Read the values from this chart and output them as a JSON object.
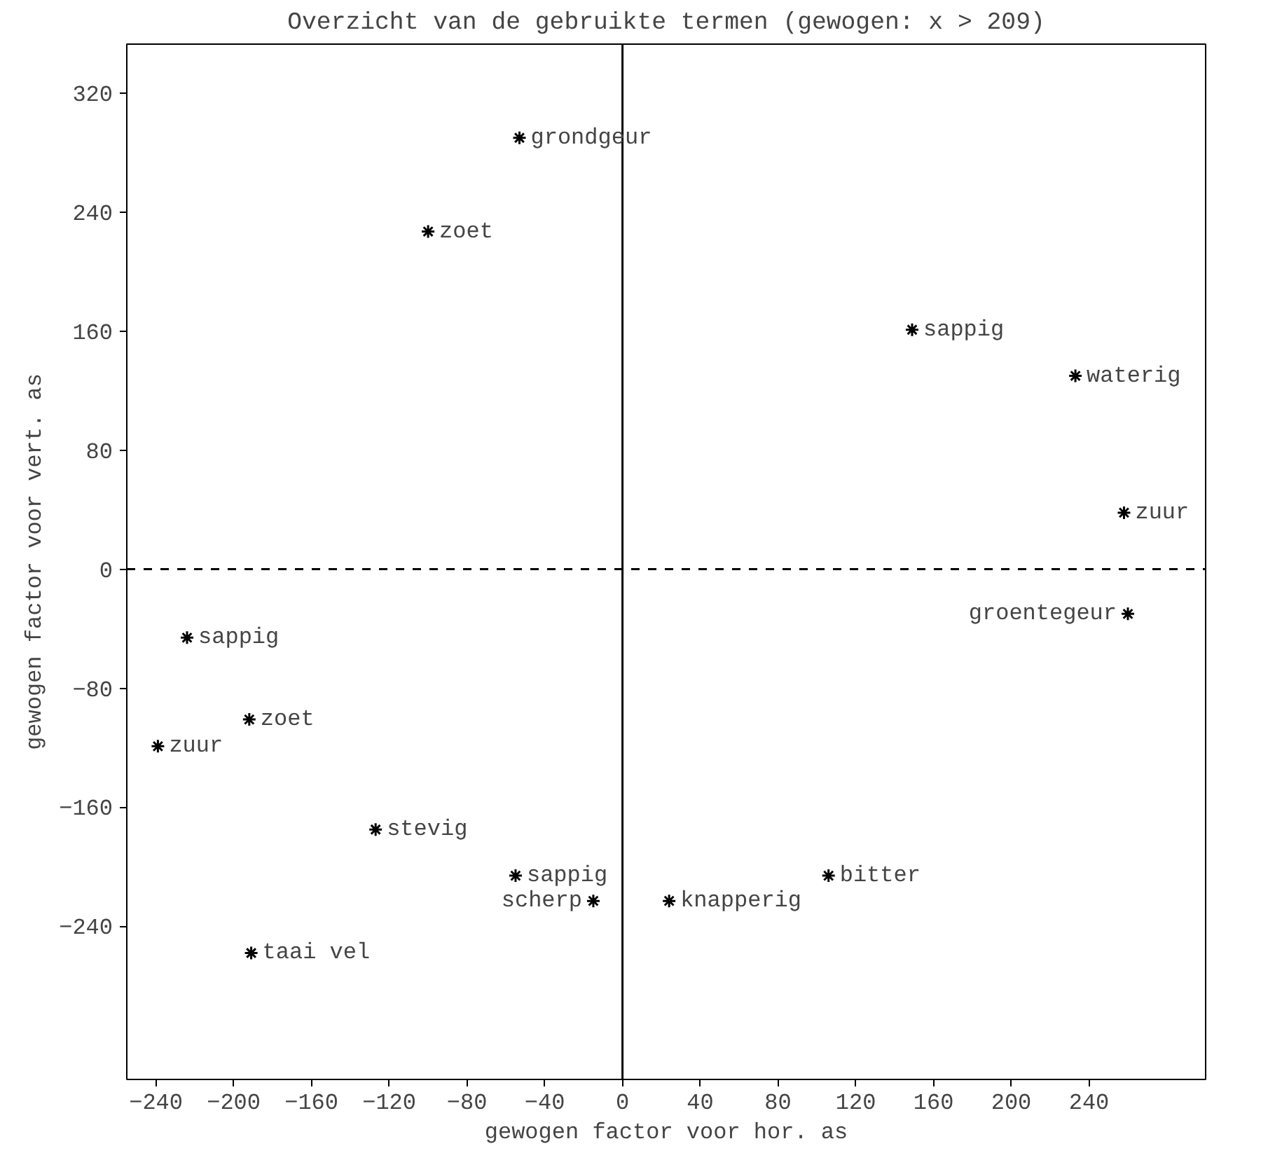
{
  "chart_data": {
    "type": "scatter",
    "title": "Overzicht van de gebruikte termen (gewogen: x > 209)",
    "xlabel": "gewogen factor voor hor. as",
    "ylabel": "gewogen factor voor vert. as",
    "xlim": [
      -255,
      300
    ],
    "ylim": [
      -343,
      353
    ],
    "xticks": [
      -240,
      -200,
      -160,
      -120,
      -80,
      -40,
      0,
      40,
      80,
      120,
      160,
      200,
      240
    ],
    "yticks": [
      -240,
      -160,
      -80,
      0,
      80,
      160,
      240,
      320
    ],
    "grid": false,
    "marker": "cross",
    "ref_lines": [
      {
        "axis": "y",
        "value": 0,
        "label": null,
        "line_style": "dashed"
      },
      {
        "axis": "x",
        "value": 0,
        "label": null,
        "line_style": "solid"
      }
    ],
    "series": [
      {
        "color": "#000000",
        "x": [
          -53,
          -100,
          149,
          233,
          258,
          260,
          -224,
          -239,
          -192,
          -127,
          -55,
          -15,
          24,
          106,
          -191
        ],
        "values": [
          290,
          227,
          161,
          130,
          38,
          -30,
          -46,
          -119,
          -101,
          -175,
          -206,
          -223,
          -223,
          -206,
          -258
        ]
      }
    ],
    "annotations": [
      {
        "text": "grondgeur",
        "x": -53,
        "y": 290
      },
      {
        "text": "zoet",
        "x": -100,
        "y": 227
      },
      {
        "text": "sappig",
        "x": 149,
        "y": 161
      },
      {
        "text": "waterig",
        "x": 233,
        "y": 130
      },
      {
        "text": "zuur",
        "x": 258,
        "y": 38
      },
      {
        "text": "groentegeur",
        "x": 260,
        "y": -30
      },
      {
        "text": "sappig",
        "x": -224,
        "y": -46
      },
      {
        "text": "zuur",
        "x": -239,
        "y": -119
      },
      {
        "text": "zoet",
        "x": -192,
        "y": -101
      },
      {
        "text": "stevig",
        "x": -127,
        "y": -175
      },
      {
        "text": "sappig",
        "x": -55,
        "y": -206
      },
      {
        "text": "scherp",
        "x": -15,
        "y": -223
      },
      {
        "text": "knapperig",
        "x": 24,
        "y": -223
      },
      {
        "text": "bitter",
        "x": 106,
        "y": -206
      },
      {
        "text": "taai vel",
        "x": -191,
        "y": -258
      }
    ]
  }
}
